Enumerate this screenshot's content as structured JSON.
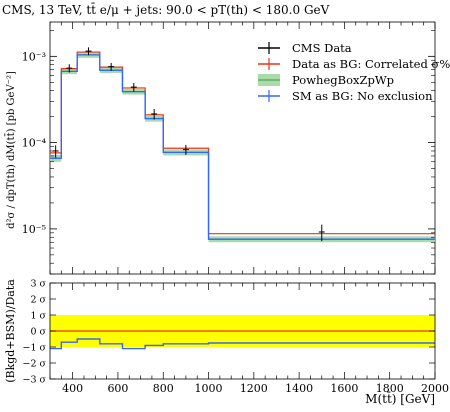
{
  "title": "CMS, 13 TeV, tt̄ e/μ + jets: 90.0 < pT(th) < 180.0 GeV",
  "chart_data": [
    {
      "type": "line",
      "panel": "main",
      "title": "CMS, 13 TeV, tt̄ e/μ + jets: 90.0 < pT(th) < 180.0 GeV",
      "xlabel": "M(tt̄) [GeV]",
      "ylabel": "d²σ / dpT(th) dM(tt̄) [pb GeV⁻²]",
      "xlim": [
        300,
        2000
      ],
      "ylim": [
        3e-06,
        0.0025
      ],
      "yscale": "log",
      "y_tick_labels": [
        "10⁻⁵",
        "10⁻⁴",
        "10⁻³"
      ],
      "x_tick_labels": [
        "400",
        "600",
        "800",
        "1000",
        "1200",
        "1400",
        "1600",
        "1800",
        "2000"
      ],
      "x_ticks": [
        400,
        600,
        800,
        1000,
        1200,
        1400,
        1600,
        1800,
        2000
      ],
      "y_ticks": [
        1e-05,
        0.0001,
        0.001
      ],
      "bin_edges": [
        300,
        350,
        420,
        520,
        620,
        720,
        800,
        1000,
        2000
      ],
      "legend_position": "top-right",
      "series": [
        {
          "name": "CMS Data",
          "color": "#000000",
          "style": "points",
          "x": [
            325,
            385,
            470,
            570,
            670,
            760,
            900,
            1500
          ],
          "y": [
            8e-05,
            0.00073,
            0.00115,
            0.00076,
            0.00044,
            0.000215,
            8.3e-05,
            9.2e-06
          ],
          "err": [
            1.3e-05,
            8e-05,
            0.00012,
            8e-05,
            5e-05,
            3e-05,
            1.1e-05,
            2e-06
          ]
        },
        {
          "name": "Data as BG: Correlated σ%",
          "color": "#ee3311",
          "style": "histogram",
          "values": [
            7.6e-05,
            0.00072,
            0.00112,
            0.00075,
            0.00043,
            0.00021,
            8.6e-05,
            8.8e-06
          ]
        },
        {
          "name": "PowhegBoxZpWp",
          "color": "#66aa66",
          "fill": "#a8dca8",
          "style": "band",
          "values": [
            6.6e-05,
            0.00067,
            0.00104,
            0.00069,
            0.00039,
            0.00019,
            7.7e-05,
            7.6e-06
          ],
          "band_low": [
            6e-05,
            0.00062,
            0.00096,
            0.00064,
            0.00036,
            0.000175,
            7.1e-05,
            7e-06
          ],
          "band_high": [
            7.2e-05,
            0.00072,
            0.00112,
            0.00074,
            0.00042,
            0.000205,
            8.3e-05,
            8.2e-06
          ]
        },
        {
          "name": "SM as BG: No exclusion",
          "color": "#3366ff",
          "style": "histogram",
          "values": [
            6.6e-05,
            0.00067,
            0.00104,
            0.00069,
            0.00039,
            0.00019,
            7.7e-05,
            7.6e-06
          ]
        }
      ]
    },
    {
      "type": "line",
      "panel": "ratio",
      "ylabel": "(Bkgd+BSM)/Data",
      "xlabel": "M(tt̄) [GeV]",
      "xlim": [
        300,
        2000
      ],
      "ylim": [
        -3,
        3
      ],
      "y_tick_labels": [
        "3 σ",
        "2 σ",
        "1 σ",
        "0 σ",
        "−1 σ",
        "−2 σ",
        "−3 σ"
      ],
      "y_ticks": [
        3,
        2,
        1,
        0,
        -1,
        -2,
        -3
      ],
      "band": {
        "low": -1,
        "high": 1,
        "color": "#ffff00"
      },
      "series": [
        {
          "name": "Data as BG: Correlated σ%",
          "color": "#ee3311",
          "style": "histogram",
          "values": [
            0,
            0,
            0,
            0,
            0,
            0,
            0,
            0
          ]
        },
        {
          "name": "SM as BG: No exclusion",
          "color": "#3366ff",
          "style": "histogram",
          "values": [
            -1.1,
            -0.7,
            -0.5,
            -0.8,
            -1.1,
            -0.9,
            -0.8,
            -0.75
          ]
        }
      ]
    }
  ]
}
